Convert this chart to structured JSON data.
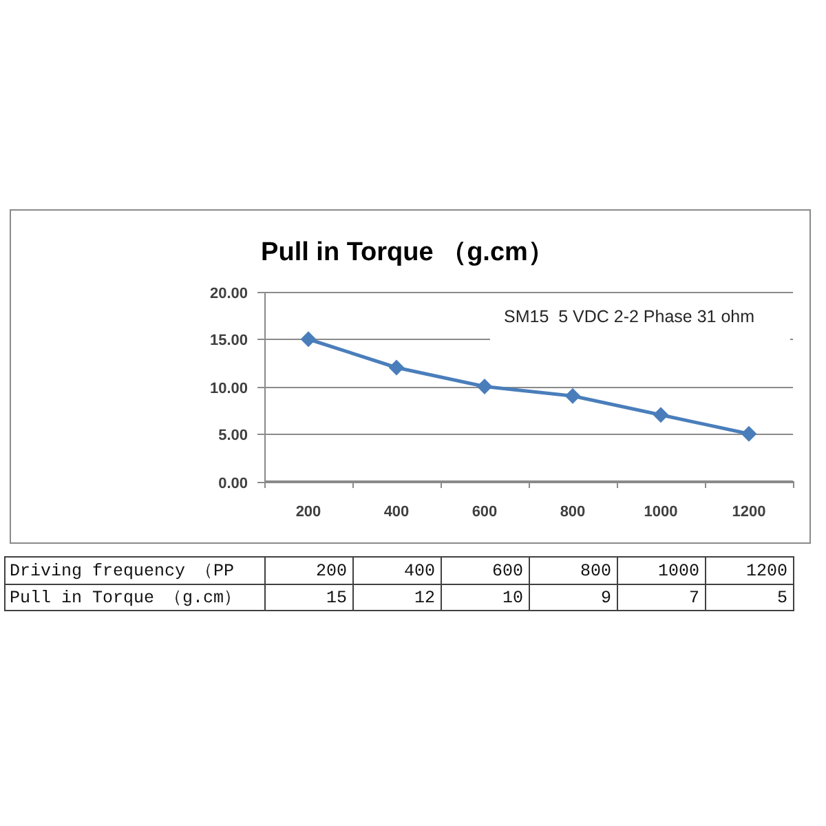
{
  "chart_data": {
    "type": "line",
    "title": "Pull in Torque （g.cm）",
    "xlabel": "Driving frequency （PP",
    "categories": [
      "200",
      "400",
      "600",
      "800",
      "1000",
      "1200"
    ],
    "series": [
      {
        "name": "Pull in Torque （g.cm）",
        "color": "#4a7ebb",
        "values": [
          15,
          12,
          10,
          9,
          7,
          5
        ],
        "value_labels": [
          "15",
          "12",
          "10",
          "9",
          "7",
          "5"
        ]
      }
    ],
    "ylim": [
      0,
      20
    ],
    "yticks": [
      {
        "value": 0,
        "label": "0.00"
      },
      {
        "value": 5,
        "label": "5.00"
      },
      {
        "value": 10,
        "label": "10.00"
      },
      {
        "value": 15,
        "label": "15.00"
      },
      {
        "value": 20,
        "label": "20.00"
      }
    ],
    "grid": "y",
    "marker": "diamond",
    "line_style": "solid",
    "annotations": [
      "SM15  5 VDC 2-2 Phase 31 ohm"
    ]
  }
}
